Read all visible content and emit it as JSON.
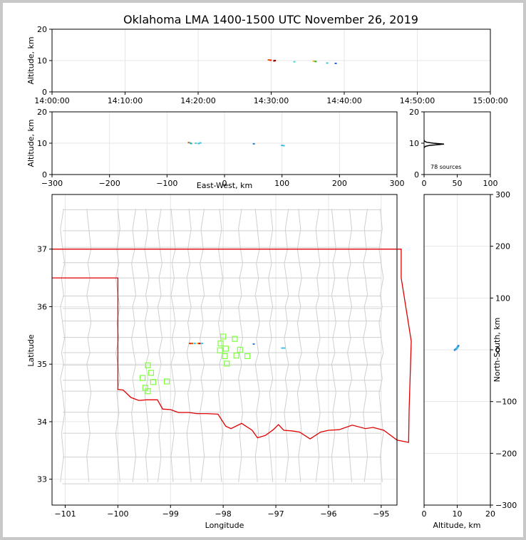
{
  "title": "Oklahoma LMA 1400-1500 UTC November 26, 2019",
  "chart_data": [
    {
      "id": "time_altitude",
      "type": "scatter",
      "ylabel": "Altitude, km",
      "xlabel": "",
      "xlim": [
        "14:00:00",
        "15:00:00"
      ],
      "ylim": [
        0,
        20
      ],
      "x_ticks": [
        "14:00:00",
        "14:10:00",
        "14:20:00",
        "14:30:00",
        "14:40:00",
        "14:50:00",
        "15:00:00"
      ],
      "y_ticks": [
        "0",
        "10",
        "20"
      ],
      "grid": true,
      "points": [
        {
          "x": "14:29:40",
          "y": 10.2,
          "color": "#d06000"
        },
        {
          "x": "14:29:55",
          "y": 10.1,
          "color": "#ff2000"
        },
        {
          "x": "14:30:25",
          "y": 9.9,
          "color": "#c00000"
        },
        {
          "x": "14:30:30",
          "y": 10.0,
          "color": "#800000"
        },
        {
          "x": "14:33:10",
          "y": 9.6,
          "color": "#40e0d0"
        },
        {
          "x": "14:35:50",
          "y": 9.8,
          "color": "#e0c000"
        },
        {
          "x": "14:36:05",
          "y": 9.7,
          "color": "#30b030"
        },
        {
          "x": "14:37:40",
          "y": 9.2,
          "color": "#40c0e0"
        },
        {
          "x": "14:38:50",
          "y": 9.1,
          "color": "#2060e0"
        }
      ]
    },
    {
      "id": "ew_altitude",
      "type": "scatter",
      "xlabel": "East-West, km",
      "ylabel": "Altitude, km",
      "xlim": [
        -300,
        300
      ],
      "ylim": [
        0,
        20
      ],
      "x_ticks": [
        "−300",
        "−200",
        "−100",
        "0",
        "100",
        "200",
        "300"
      ],
      "y_ticks": [
        "0",
        "10",
        "20"
      ],
      "grid": true,
      "points": [
        {
          "x": -62,
          "y": 10.2,
          "color": "#d06000"
        },
        {
          "x": -60,
          "y": 10.1,
          "color": "#40c0e0"
        },
        {
          "x": -58,
          "y": 9.9,
          "color": "#20b0a0"
        },
        {
          "x": -50,
          "y": 10.0,
          "color": "#40e0d0"
        },
        {
          "x": -45,
          "y": 9.9,
          "color": "#30c0e0"
        },
        {
          "x": -42,
          "y": 10.1,
          "color": "#40c0e0"
        },
        {
          "x": 51,
          "y": 9.8,
          "color": "#2080e0"
        },
        {
          "x": 100,
          "y": 9.3,
          "color": "#40c0e0"
        },
        {
          "x": 103,
          "y": 9.2,
          "color": "#40c0e0"
        }
      ]
    },
    {
      "id": "altitude_histogram",
      "type": "line",
      "xlim": [
        0,
        100
      ],
      "ylim": [
        0,
        20
      ],
      "x_ticks": [
        "0",
        "50",
        "100"
      ],
      "y_ticks": [
        "0",
        "10",
        "20"
      ],
      "annotation": "78 sources",
      "profile": [
        {
          "count": 0,
          "alt": 8.6
        },
        {
          "count": 2,
          "alt": 9.0
        },
        {
          "count": 8,
          "alt": 9.3
        },
        {
          "count": 30,
          "alt": 9.7
        },
        {
          "count": 14,
          "alt": 10.0
        },
        {
          "count": 4,
          "alt": 10.3
        },
        {
          "count": 1,
          "alt": 10.6
        },
        {
          "count": 0,
          "alt": 11.0
        }
      ]
    },
    {
      "id": "plan_view",
      "type": "scatter",
      "xlabel": "Longitude",
      "ylabel": "Latitude",
      "xlim": [
        -101.25,
        -94.7
      ],
      "ylim": [
        32.55,
        37.95
      ],
      "x_ticks": [
        "−101",
        "−100",
        "−99",
        "−98",
        "−97",
        "−96",
        "−95"
      ],
      "y_ticks": [
        "33",
        "34",
        "35",
        "36",
        "37"
      ],
      "grid": true,
      "stations": [
        [
          -98.0,
          35.48
        ],
        [
          -98.05,
          35.36
        ],
        [
          -97.78,
          35.44
        ],
        [
          -98.06,
          35.24
        ],
        [
          -97.95,
          35.27
        ],
        [
          -97.68,
          35.25
        ],
        [
          -97.75,
          35.15
        ],
        [
          -97.97,
          35.14
        ],
        [
          -97.54,
          35.14
        ],
        [
          -97.93,
          35.01
        ],
        [
          -99.43,
          34.98
        ],
        [
          -99.37,
          34.85
        ],
        [
          -99.53,
          34.76
        ],
        [
          -99.33,
          34.69
        ],
        [
          -99.07,
          34.7
        ],
        [
          -99.48,
          34.59
        ],
        [
          -99.43,
          34.53
        ]
      ],
      "points": [
        {
          "lon": -98.63,
          "lat": 35.36,
          "color": "#ff2000"
        },
        {
          "lon": -98.59,
          "lat": 35.36,
          "color": "#d06000"
        },
        {
          "lon": -98.54,
          "lat": 35.36,
          "color": "#40c0e0"
        },
        {
          "lon": -98.48,
          "lat": 35.36,
          "color": "#e0c000"
        },
        {
          "lon": -98.45,
          "lat": 35.36,
          "color": "#c00000"
        },
        {
          "lon": -98.4,
          "lat": 35.36,
          "color": "#40c0e0"
        },
        {
          "lon": -97.42,
          "lat": 35.35,
          "color": "#2080e0"
        },
        {
          "lon": -96.88,
          "lat": 35.28,
          "color": "#40c0e0"
        },
        {
          "lon": -96.84,
          "lat": 35.28,
          "color": "#40c0e0"
        }
      ]
    },
    {
      "id": "altitude_ns",
      "type": "scatter",
      "xlabel": "Altitude, km",
      "ylabel": "North-South, km",
      "xlim": [
        0,
        20
      ],
      "ylim": [
        -300,
        300
      ],
      "x_ticks": [
        "0",
        "10",
        "20"
      ],
      "y_ticks": [
        "−300",
        "−200",
        "−100",
        "0",
        "100",
        "200",
        "300"
      ],
      "grid": true,
      "points": [
        {
          "x": 9.2,
          "y": 0,
          "color": "#2060e0"
        },
        {
          "x": 9.4,
          "y": 1,
          "color": "#40c0e0"
        },
        {
          "x": 9.6,
          "y": 2,
          "color": "#2080e0"
        },
        {
          "x": 9.8,
          "y": 3,
          "color": "#40c0e0"
        },
        {
          "x": 10.0,
          "y": 5,
          "color": "#2060e0"
        },
        {
          "x": 10.2,
          "y": 7,
          "color": "#40c0e0"
        },
        {
          "x": 10.3,
          "y": 8,
          "color": "#2080e0"
        },
        {
          "x": 9.9,
          "y": 4,
          "color": "#40c0e0"
        }
      ]
    }
  ]
}
